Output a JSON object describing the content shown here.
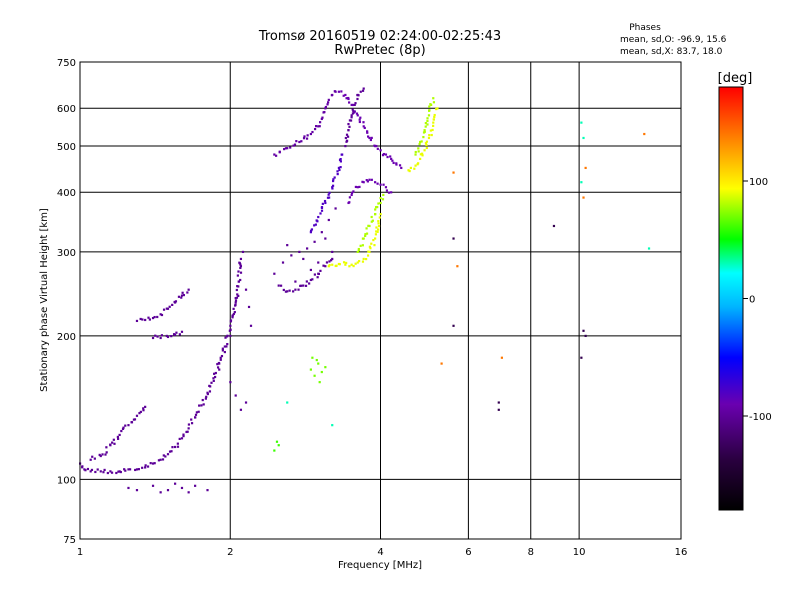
{
  "chart_data": {
    "type": "scatter",
    "title": "Tromsø 20160519 02:24:00-02:25:43",
    "subtitle": "RwPretec (8p)",
    "xlabel": "Frequency [MHz]",
    "ylabel": "Stationary phase Virtual Height [km]",
    "x_scale": "log",
    "y_scale": "log",
    "xlim": [
      1,
      16
    ],
    "ylim": [
      75,
      750
    ],
    "x_ticks": [
      1,
      2,
      4,
      6,
      8,
      10,
      16
    ],
    "y_ticks": [
      75,
      100,
      200,
      300,
      400,
      500,
      600,
      750
    ],
    "x_grid": [
      2,
      4,
      6,
      8,
      10
    ],
    "y_grid": [
      100,
      200,
      300,
      400,
      500,
      600
    ],
    "grid": true,
    "stats": {
      "heading": "Phases",
      "line1": "mean, sd,O: -96.9, 15.6",
      "line2": "mean, sd,X:  83.7, 18.0"
    },
    "colorbar": {
      "label": "[deg]",
      "ticks": [
        100,
        0,
        -100
      ],
      "vmin": -180,
      "vmax": 180,
      "placement": "right"
    },
    "series": [
      {
        "mode": "ascending-trace",
        "value": -100,
        "x": [
          1.0,
          1.02,
          1.05,
          1.1,
          1.15,
          1.2,
          1.25,
          1.3,
          1.35,
          1.4,
          1.45,
          1.5,
          1.55,
          1.6,
          1.65,
          1.7,
          1.75,
          1.8,
          1.85,
          1.9,
          1.95,
          2.0,
          2.05,
          2.08,
          2.1
        ],
        "y": [
          108,
          105,
          104,
          104,
          104,
          104,
          105,
          105,
          106,
          108,
          110,
          113,
          117,
          122,
          128,
          135,
          143,
          152,
          163,
          175,
          190,
          210,
          235,
          260,
          290
        ]
      },
      {
        "mode": "trace",
        "value": -100,
        "x": [
          1.05,
          1.1,
          1.15,
          1.2,
          1.25,
          1.3,
          1.35
        ],
        "y": [
          110,
          112,
          118,
          124,
          130,
          136,
          142
        ]
      },
      {
        "mode": "trace",
        "value": -100,
        "x": [
          1.3,
          1.35,
          1.4,
          1.45,
          1.5,
          1.55,
          1.6,
          1.65
        ],
        "y": [
          215,
          216,
          218,
          222,
          228,
          235,
          243,
          250
        ]
      },
      {
        "mode": "trace",
        "value": -100,
        "x": [
          1.4,
          1.45,
          1.5,
          1.55,
          1.6
        ],
        "y": [
          198,
          198,
          199,
          201,
          204
        ]
      },
      {
        "mode": "scatter-cloud",
        "value": -100,
        "x": [
          1.25,
          1.3,
          1.4,
          1.45,
          1.5,
          1.55,
          1.6,
          1.65,
          1.7,
          1.8
        ],
        "y": [
          96,
          95,
          97,
          94,
          95,
          98,
          96,
          94,
          97,
          95
        ]
      },
      {
        "mode": "scatter-cloud",
        "value": -100,
        "x": [
          1.9,
          1.95,
          2.0,
          2.02,
          2.05,
          2.08,
          2.1,
          2.12,
          2.15,
          2.18,
          2.2,
          2.05,
          2.1,
          2.0,
          2.15
        ],
        "y": [
          170,
          185,
          200,
          220,
          240,
          260,
          280,
          300,
          250,
          230,
          210,
          150,
          140,
          160,
          145
        ]
      },
      {
        "mode": "trace",
        "value": -100,
        "x": [
          2.5,
          2.6,
          2.7,
          2.8,
          2.9,
          3.0,
          3.1,
          3.2
        ],
        "y": [
          255,
          248,
          250,
          255,
          262,
          270,
          280,
          290
        ]
      },
      {
        "mode": "scatter-cloud",
        "value": -100,
        "x": [
          2.45,
          2.55,
          2.65,
          2.75,
          2.85,
          2.95,
          3.05,
          3.15,
          3.25,
          2.6,
          2.8,
          3.0,
          3.2,
          2.7,
          2.9,
          3.1
        ],
        "y": [
          270,
          285,
          295,
          300,
          305,
          315,
          330,
          350,
          370,
          310,
          290,
          285,
          300,
          260,
          275,
          320
        ]
      },
      {
        "mode": "trace",
        "value": -95,
        "x": [
          2.45,
          2.6,
          2.75,
          2.9,
          3.0,
          3.05,
          3.1,
          3.15,
          3.2,
          3.25
        ],
        "y": [
          480,
          495,
          510,
          530,
          550,
          570,
          600,
          625,
          640,
          650
        ]
      },
      {
        "mode": "trace",
        "value": -80,
        "x": [
          2.9,
          3.0,
          3.1,
          3.2,
          3.3,
          3.35
        ],
        "y": [
          330,
          355,
          380,
          410,
          450,
          480
        ]
      },
      {
        "mode": "trace",
        "value": -90,
        "x": [
          3.3,
          3.4,
          3.5,
          3.6,
          3.7,
          3.8,
          3.9,
          4.0,
          4.1,
          4.2,
          4.3,
          4.4
        ],
        "y": [
          650,
          640,
          610,
          580,
          550,
          520,
          500,
          490,
          480,
          470,
          460,
          450
        ]
      },
      {
        "mode": "trace",
        "value": -90,
        "x": [
          3.45,
          3.5,
          3.6,
          3.7,
          3.8,
          3.9,
          4.0,
          4.1,
          4.2
        ],
        "y": [
          380,
          395,
          410,
          420,
          425,
          420,
          415,
          410,
          400
        ]
      },
      {
        "mode": "trace",
        "value": -100,
        "x": [
          3.4,
          3.45,
          3.5,
          3.55,
          3.6,
          3.65,
          3.7
        ],
        "y": [
          500,
          540,
          580,
          610,
          640,
          650,
          660
        ]
      },
      {
        "mode": "trace",
        "value": 90,
        "x": [
          3.15,
          3.2,
          3.3,
          3.4,
          3.5,
          3.6,
          3.7,
          3.8,
          3.9,
          4.0
        ],
        "y": [
          280,
          282,
          283,
          282,
          282,
          285,
          290,
          300,
          320,
          360
        ]
      },
      {
        "mode": "trace",
        "value": 80,
        "x": [
          3.6,
          3.7,
          3.8,
          3.9,
          4.0,
          4.05
        ],
        "y": [
          300,
          320,
          340,
          360,
          380,
          395
        ]
      },
      {
        "mode": "trace",
        "value": 90,
        "x": [
          4.55,
          4.6,
          4.7,
          4.8,
          4.9,
          5.0,
          5.1,
          5.2
        ],
        "y": [
          445,
          450,
          455,
          470,
          490,
          520,
          560,
          600
        ]
      },
      {
        "mode": "trace",
        "value": 80,
        "x": [
          4.7,
          4.8,
          4.9,
          5.0,
          5.05,
          5.1
        ],
        "y": [
          480,
          510,
          540,
          580,
          610,
          630
        ]
      },
      {
        "mode": "scatter-cloud",
        "value": 70,
        "x": [
          2.9,
          2.95,
          3.0,
          3.02,
          3.05,
          3.1,
          2.92,
          2.98
        ],
        "y": [
          170,
          165,
          175,
          160,
          168,
          172,
          180,
          178
        ]
      },
      {
        "mode": "scatter-cloud",
        "value": 60,
        "x": [
          2.45,
          2.5,
          2.48
        ],
        "y": [
          115,
          118,
          120
        ]
      },
      {
        "mode": "scatter-cloud",
        "value": 140,
        "x": [
          13.5,
          10.3,
          10.2,
          5.6,
          5.7,
          7.0,
          5.3
        ],
        "y": [
          530,
          450,
          390,
          440,
          280,
          180,
          175
        ]
      },
      {
        "mode": "scatter-cloud",
        "value": 30,
        "x": [
          10.1,
          10.2,
          13.8,
          10.1,
          3.2,
          2.6
        ],
        "y": [
          560,
          520,
          305,
          420,
          130,
          145
        ]
      },
      {
        "mode": "scatter-cloud",
        "value": -130,
        "x": [
          8.9,
          10.2,
          10.3,
          10.1,
          6.9,
          6.9,
          5.6,
          5.6
        ],
        "y": [
          340,
          205,
          200,
          180,
          145,
          140,
          320,
          210
        ]
      }
    ]
  }
}
